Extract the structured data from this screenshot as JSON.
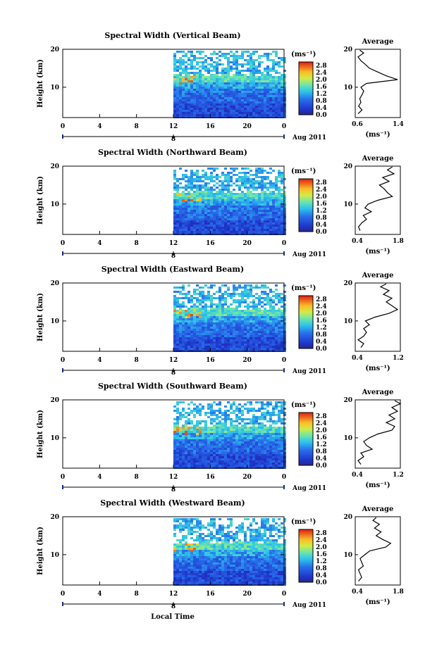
{
  "figure": {
    "xlabel": "Local Time",
    "colorbar_unit": "(ms⁻¹)",
    "date_label": "Aug 2011",
    "day_tick_label": "8",
    "panel_ylabel": "Height (km)",
    "avg_title": "Average",
    "avg_unit": "(ms⁻¹)",
    "colorbar_ticks": [
      "2.8",
      "2.4",
      "2.0",
      "1.6",
      "1.2",
      "0.8",
      "0.4",
      "0.0"
    ],
    "colors": {
      "low": "#1f3fc8",
      "mid": "#2ec4e8",
      "high": "#e83010",
      "no_data": "#ffffff"
    }
  },
  "chart_data": [
    {
      "type": "heatmap",
      "title": "Spectral Width (Vertical Beam)",
      "ylabel": "Height (km)",
      "xlabel": "Local Time",
      "x_ticks": [
        "0",
        "4",
        "8",
        "12",
        "16",
        "20",
        "0"
      ],
      "y_ticks": [
        "20",
        "10"
      ],
      "xlim": [
        0,
        24
      ],
      "ylim": [
        2,
        20
      ],
      "data_start_hour": 12,
      "colorbar_range": [
        0,
        3.0
      ],
      "profile": {
        "title": "Average",
        "xlim": [
          0.6,
          1.4
        ],
        "x_ticks": [
          "0.6",
          "1.4"
        ],
        "heights": [
          3,
          4,
          5,
          6,
          7,
          8,
          9,
          10,
          11,
          12,
          13,
          14,
          15,
          16,
          17,
          18,
          19,
          19.8
        ],
        "values": [
          0.65,
          0.72,
          0.66,
          0.7,
          0.68,
          0.72,
          0.75,
          0.7,
          0.8,
          1.35,
          1.15,
          1.0,
          0.85,
          0.78,
          0.7,
          0.65,
          0.75,
          0.68
        ]
      }
    },
    {
      "type": "heatmap",
      "title": "Spectral Width (Northward Beam)",
      "ylabel": "Height (km)",
      "xlabel": "Local Time",
      "x_ticks": [
        "0",
        "4",
        "8",
        "12",
        "16",
        "20",
        "0"
      ],
      "y_ticks": [
        "20",
        "10"
      ],
      "xlim": [
        0,
        24
      ],
      "ylim": [
        2,
        20
      ],
      "data_start_hour": 12,
      "colorbar_range": [
        0,
        3.0
      ],
      "profile": {
        "title": "Average",
        "xlim": [
          0.4,
          1.8
        ],
        "x_ticks": [
          "0.4",
          "1.8"
        ],
        "heights": [
          3,
          4,
          5,
          6,
          7,
          8,
          9,
          10,
          11,
          12,
          13,
          14,
          15,
          16,
          17,
          18,
          19,
          19.8
        ],
        "values": [
          0.55,
          0.5,
          0.6,
          0.75,
          0.65,
          0.9,
          0.7,
          0.8,
          1.1,
          1.55,
          1.4,
          1.3,
          1.15,
          1.45,
          1.25,
          1.6,
          1.4,
          1.55
        ]
      }
    },
    {
      "type": "heatmap",
      "title": "Spectral Width (Eastward Beam)",
      "ylabel": "Height (km)",
      "xlabel": "Local Time",
      "x_ticks": [
        "0",
        "4",
        "8",
        "12",
        "16",
        "20",
        "0"
      ],
      "y_ticks": [
        "20",
        "10"
      ],
      "xlim": [
        0,
        24
      ],
      "ylim": [
        2,
        20
      ],
      "data_start_hour": 12,
      "colorbar_range": [
        0,
        3.0
      ],
      "profile": {
        "title": "Average",
        "xlim": [
          0.4,
          1.2
        ],
        "x_ticks": [
          "0.4",
          "1.2"
        ],
        "heights": [
          3,
          4,
          5,
          6,
          7,
          8,
          9,
          10,
          11,
          12,
          13,
          14,
          15,
          16,
          17,
          18,
          19,
          19.8
        ],
        "values": [
          0.5,
          0.55,
          0.45,
          0.55,
          0.6,
          0.55,
          0.65,
          0.58,
          0.75,
          1.0,
          1.15,
          1.05,
          0.95,
          1.05,
          0.9,
          1.0,
          0.85,
          0.95
        ]
      }
    },
    {
      "type": "heatmap",
      "title": "Spectral Width (Southward Beam)",
      "ylabel": "Height (km)",
      "xlabel": "Local Time",
      "x_ticks": [
        "0",
        "4",
        "8",
        "12",
        "16",
        "20",
        "0"
      ],
      "y_ticks": [
        "20",
        "10"
      ],
      "xlim": [
        0,
        24
      ],
      "ylim": [
        2,
        20
      ],
      "data_start_hour": 12,
      "colorbar_range": [
        0,
        3.0
      ],
      "profile": {
        "title": "Average",
        "xlim": [
          0.4,
          1.2
        ],
        "x_ticks": [
          "0.4",
          "1.2"
        ],
        "heights": [
          3,
          4,
          5,
          6,
          7,
          8,
          9,
          10,
          11,
          12,
          13,
          14,
          15,
          16,
          17,
          18,
          19,
          19.8
        ],
        "values": [
          0.5,
          0.45,
          0.55,
          0.5,
          0.7,
          0.6,
          0.55,
          0.65,
          0.8,
          1.05,
          1.1,
          0.95,
          1.1,
          1.0,
          1.15,
          1.05,
          1.2,
          1.1
        ]
      }
    },
    {
      "type": "heatmap",
      "title": "Spectral Width (Westward Beam)",
      "ylabel": "Height (km)",
      "xlabel": "Local Time",
      "x_ticks": [
        "0",
        "4",
        "8",
        "12",
        "16",
        "20",
        "0"
      ],
      "y_ticks": [
        "20",
        "10"
      ],
      "xlim": [
        0,
        24
      ],
      "ylim": [
        2,
        20
      ],
      "data_start_hour": 12,
      "colorbar_range": [
        0,
        3.0
      ],
      "profile": {
        "title": "Average",
        "xlim": [
          0.4,
          1.8
        ],
        "x_ticks": [
          "0.4",
          "1.8"
        ],
        "heights": [
          3,
          4,
          5,
          6,
          7,
          8,
          9,
          10,
          11,
          12,
          13,
          14,
          15,
          16,
          17,
          18,
          19,
          19.8
        ],
        "values": [
          0.5,
          0.6,
          0.55,
          0.5,
          0.65,
          0.6,
          0.55,
          0.7,
          0.85,
          1.35,
          1.5,
          1.25,
          1.05,
          1.2,
          1.0,
          1.15,
          0.95,
          1.05
        ]
      }
    }
  ]
}
